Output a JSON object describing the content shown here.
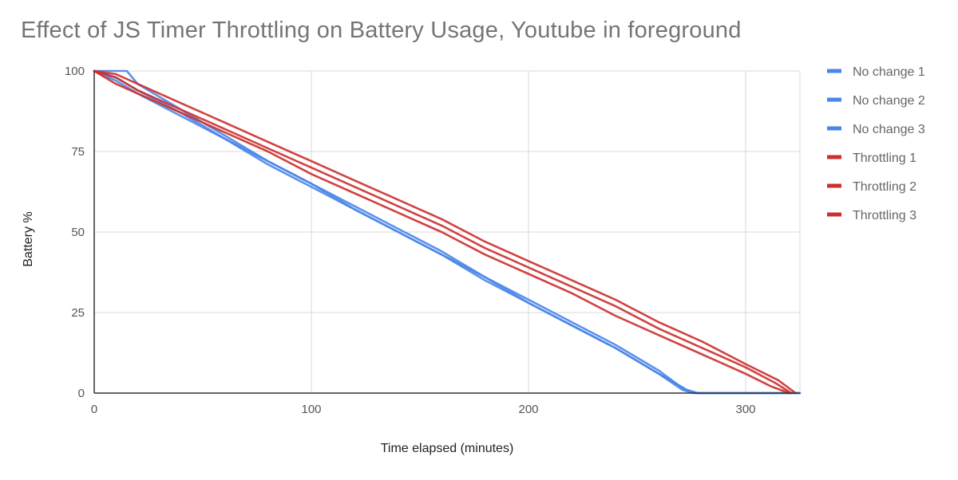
{
  "chart_data": {
    "type": "line",
    "title": "Effect of JS Timer Throttling on Battery Usage, Youtube in foreground",
    "xlabel": "Time elapsed (minutes)",
    "ylabel": "Battery %",
    "xlim": [
      0,
      325
    ],
    "ylim": [
      0,
      100
    ],
    "xticks": [
      0,
      100,
      200,
      300
    ],
    "yticks": [
      0,
      25,
      50,
      75,
      100
    ],
    "grid": true,
    "legend_position": "right",
    "series": [
      {
        "name": "No change 1",
        "color": "#4a86e8",
        "x": [
          0,
          10,
          20,
          40,
          60,
          80,
          100,
          120,
          140,
          160,
          180,
          200,
          220,
          240,
          260,
          272,
          277,
          325
        ],
        "y": [
          100,
          98,
          94,
          87,
          79,
          72,
          65,
          58,
          51,
          44,
          36,
          29,
          22,
          15,
          7,
          1,
          0,
          0
        ]
      },
      {
        "name": "No change 2",
        "color": "#4a86e8",
        "x": [
          0,
          10,
          20,
          40,
          60,
          80,
          100,
          120,
          140,
          160,
          180,
          200,
          220,
          240,
          260,
          271,
          276,
          325
        ],
        "y": [
          100,
          97,
          93,
          86,
          79,
          71,
          64,
          57,
          50,
          43,
          36,
          28,
          21,
          14,
          6,
          1,
          0,
          0
        ]
      },
      {
        "name": "No change 3",
        "color": "#4a86e8",
        "x": [
          0,
          15,
          20,
          40,
          60,
          80,
          100,
          120,
          140,
          160,
          180,
          200,
          220,
          240,
          260,
          273,
          278,
          325
        ],
        "y": [
          100,
          100,
          96,
          88,
          80,
          72,
          65,
          57,
          50,
          43,
          35,
          28,
          21,
          14,
          6,
          1,
          0,
          0
        ]
      },
      {
        "name": "Throttling 1",
        "color": "#cc2f2f",
        "x": [
          0,
          10,
          20,
          40,
          60,
          80,
          100,
          120,
          140,
          160,
          180,
          200,
          220,
          240,
          260,
          280,
          300,
          315,
          323
        ],
        "y": [
          100,
          99,
          96,
          90,
          84,
          78,
          72,
          66,
          60,
          54,
          47,
          41,
          35,
          29,
          22,
          16,
          9,
          4,
          0
        ]
      },
      {
        "name": "Throttling 2",
        "color": "#cc2f2f",
        "x": [
          0,
          10,
          20,
          40,
          60,
          80,
          100,
          120,
          140,
          160,
          180,
          200,
          220,
          240,
          260,
          280,
          300,
          312,
          320
        ],
        "y": [
          100,
          96,
          93,
          87,
          81,
          75,
          68,
          62,
          56,
          50,
          43,
          37,
          31,
          24,
          18,
          12,
          6,
          2,
          0
        ]
      },
      {
        "name": "Throttling 3",
        "color": "#cc2f2f",
        "x": [
          0,
          10,
          20,
          40,
          60,
          80,
          100,
          120,
          140,
          160,
          180,
          200,
          220,
          240,
          260,
          280,
          300,
          314,
          321
        ],
        "y": [
          100,
          98,
          94,
          88,
          82,
          76,
          70,
          64,
          58,
          52,
          45,
          39,
          33,
          27,
          20,
          14,
          8,
          3,
          0
        ]
      }
    ]
  }
}
